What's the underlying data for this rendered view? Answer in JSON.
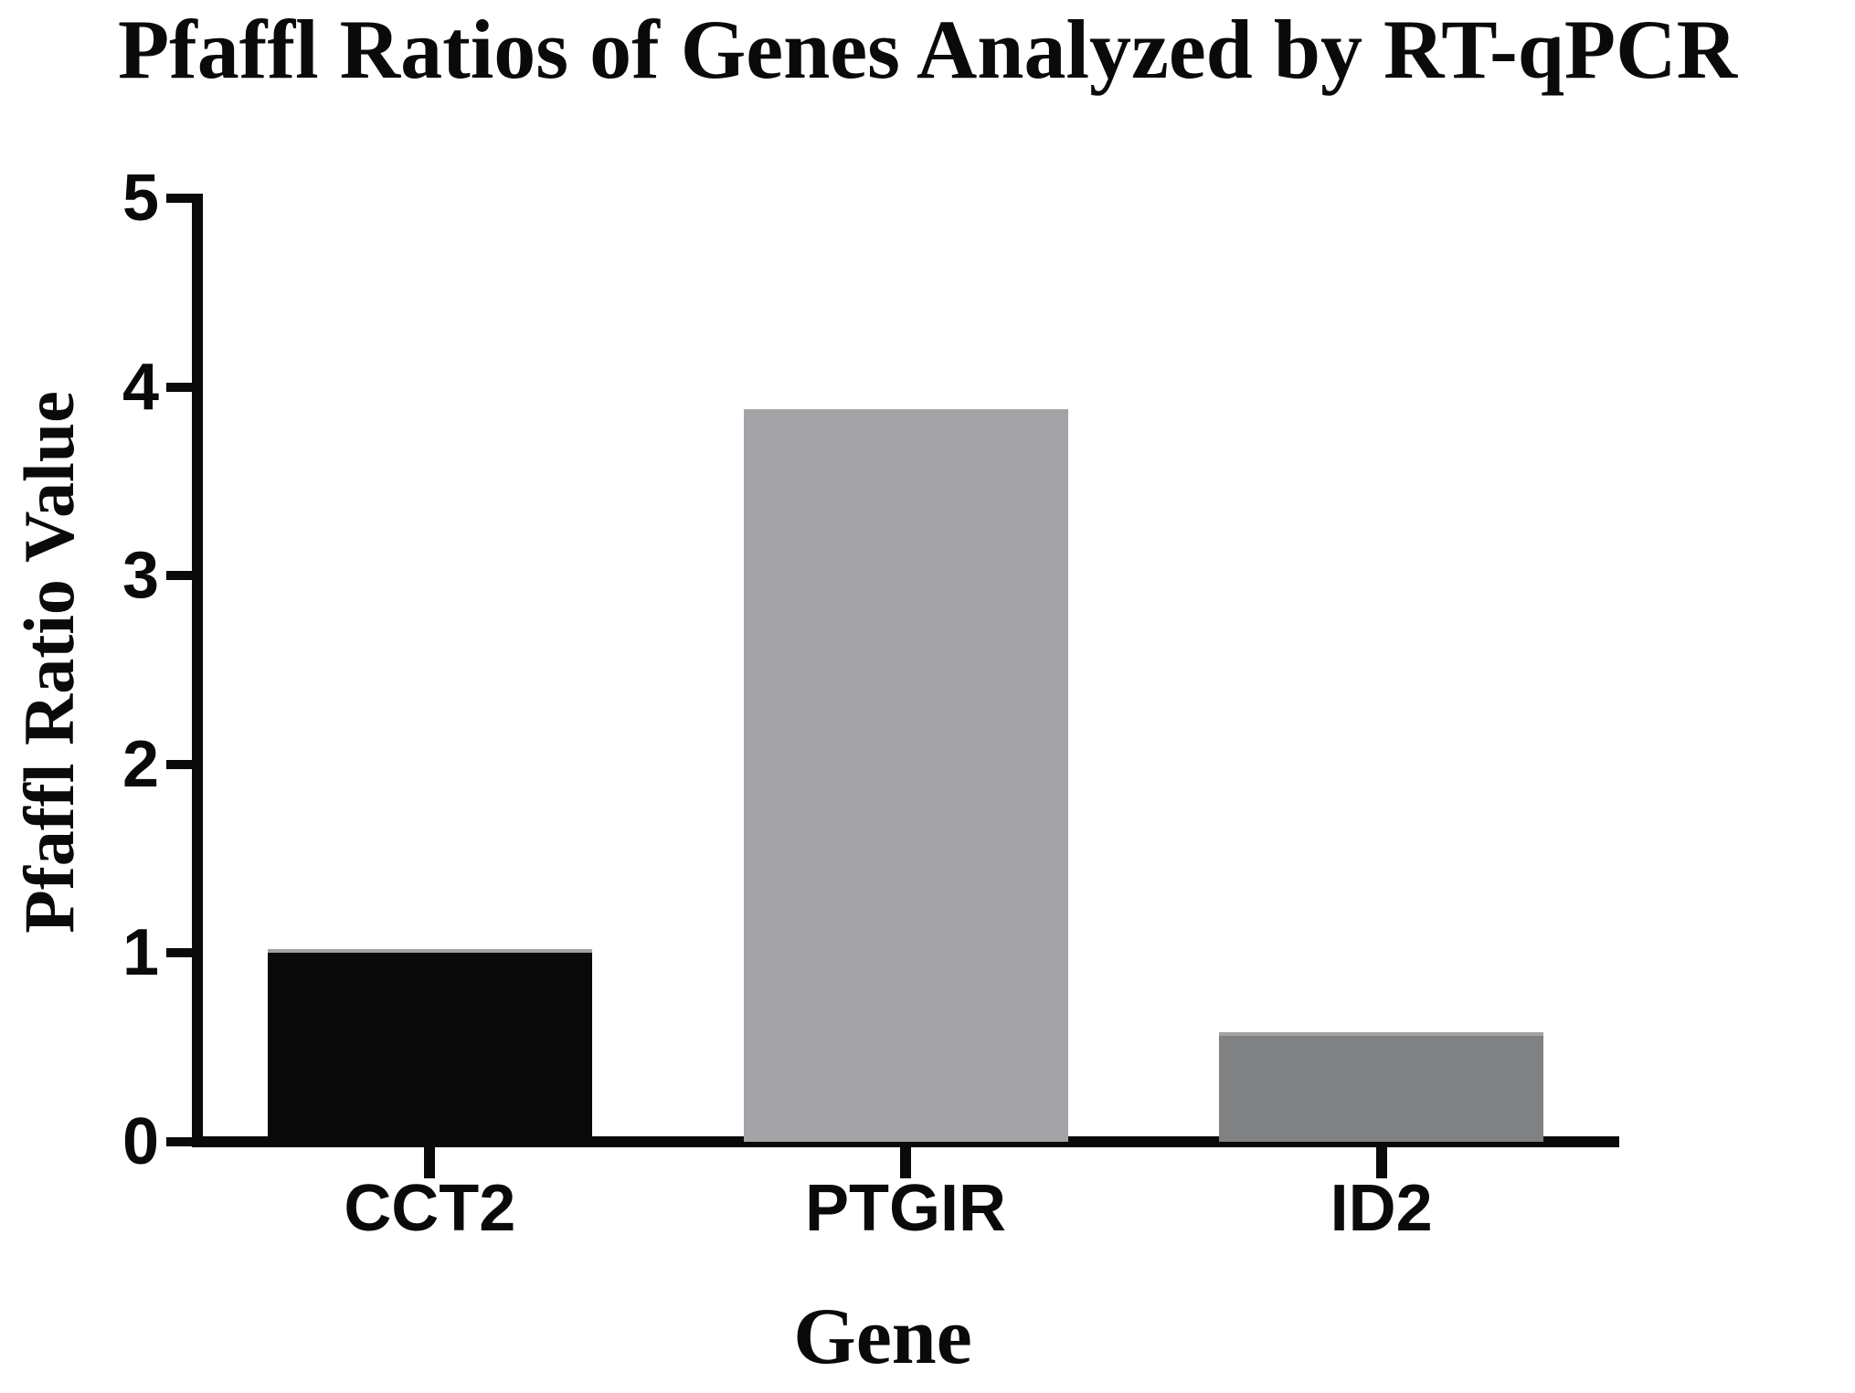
{
  "chart_data": {
    "type": "bar",
    "title": "Pfaffl Ratios of Genes Analyzed by RT-qPCR",
    "xlabel": "Gene",
    "ylabel": "Pfaffl Ratio Value",
    "categories": [
      "CCT2",
      "PTGIR",
      "ID2"
    ],
    "values": [
      1.02,
      3.88,
      0.58
    ],
    "bar_colors": [
      "#0a0a0a",
      "#a3a3a8",
      "#7f8183"
    ],
    "ylim": [
      0,
      5
    ],
    "yticks": [
      0,
      1,
      2,
      3,
      4,
      5
    ],
    "grid": false,
    "legend": false,
    "layout_hint": "single plot, ticks outside axis, categorical x-axis with centered bars"
  },
  "colors": {
    "background": "#ffffff",
    "axis": "#0a0a0a",
    "bar_top_edge": "#a2a2a5"
  }
}
